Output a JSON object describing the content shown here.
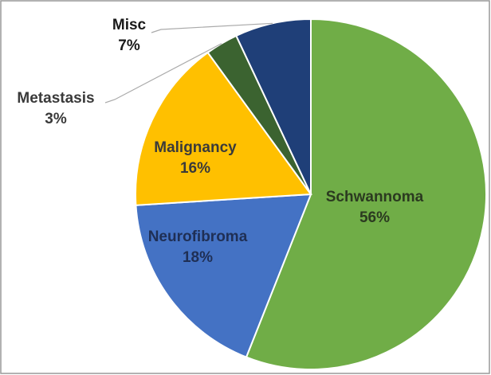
{
  "chart_data": {
    "type": "pie",
    "categories": [
      "Schwannoma",
      "Neurofibroma",
      "Malignancy",
      "Metastasis",
      "Misc"
    ],
    "values": [
      56,
      18,
      16,
      3,
      7
    ],
    "value_labels": [
      "56%",
      "18%",
      "16%",
      "3%",
      "7%"
    ],
    "colors": [
      "#70ad47",
      "#4472c4",
      "#ffc000",
      "#3b6330",
      "#1f3f78"
    ]
  }
}
